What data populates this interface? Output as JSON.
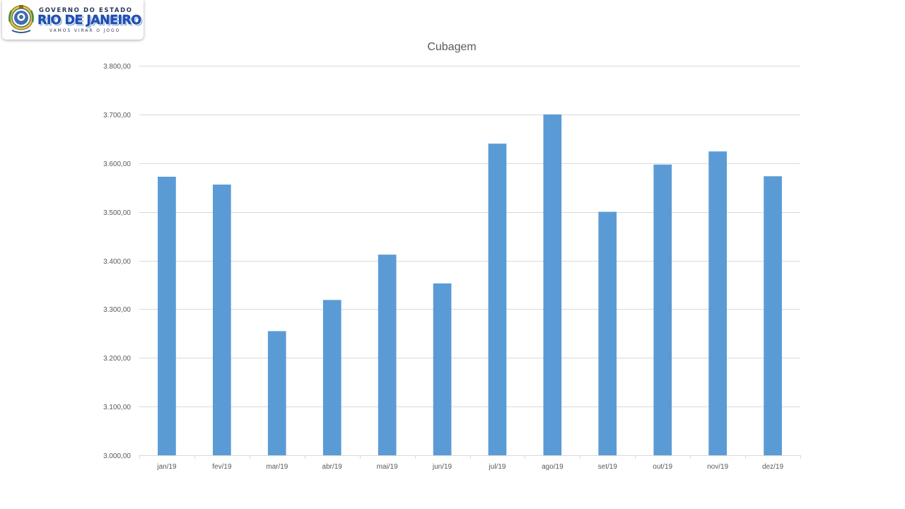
{
  "logo": {
    "line1": "GOVERNO DO ESTADO",
    "line2": "RIO DE JANEIRO",
    "line3": "VAMOS VIRAR O JOGO"
  },
  "chart_data": {
    "type": "bar",
    "title": "Cubagem",
    "xlabel": "",
    "ylabel": "",
    "categories": [
      "jan/19",
      "fev/19",
      "mar/19",
      "abr/19",
      "mai/19",
      "jun/19",
      "jul/19",
      "ago/19",
      "set/19",
      "out/19",
      "nov/19",
      "dez/19"
    ],
    "values": [
      3572,
      3556,
      3255,
      3319,
      3412,
      3353,
      3640,
      3700,
      3500,
      3597,
      3624,
      3573
    ],
    "ylim": [
      3000,
      3800
    ],
    "yticks": [
      3000,
      3100,
      3200,
      3300,
      3400,
      3500,
      3600,
      3700,
      3800
    ],
    "ytick_labels": [
      "3.000,00",
      "3.100,00",
      "3.200,00",
      "3.300,00",
      "3.400,00",
      "3.500,00",
      "3.600,00",
      "3.700,00",
      "3.800,00"
    ],
    "grid": true,
    "legend": "none",
    "bar_color": "#5b9bd5",
    "grid_color": "#d9d9d9"
  }
}
